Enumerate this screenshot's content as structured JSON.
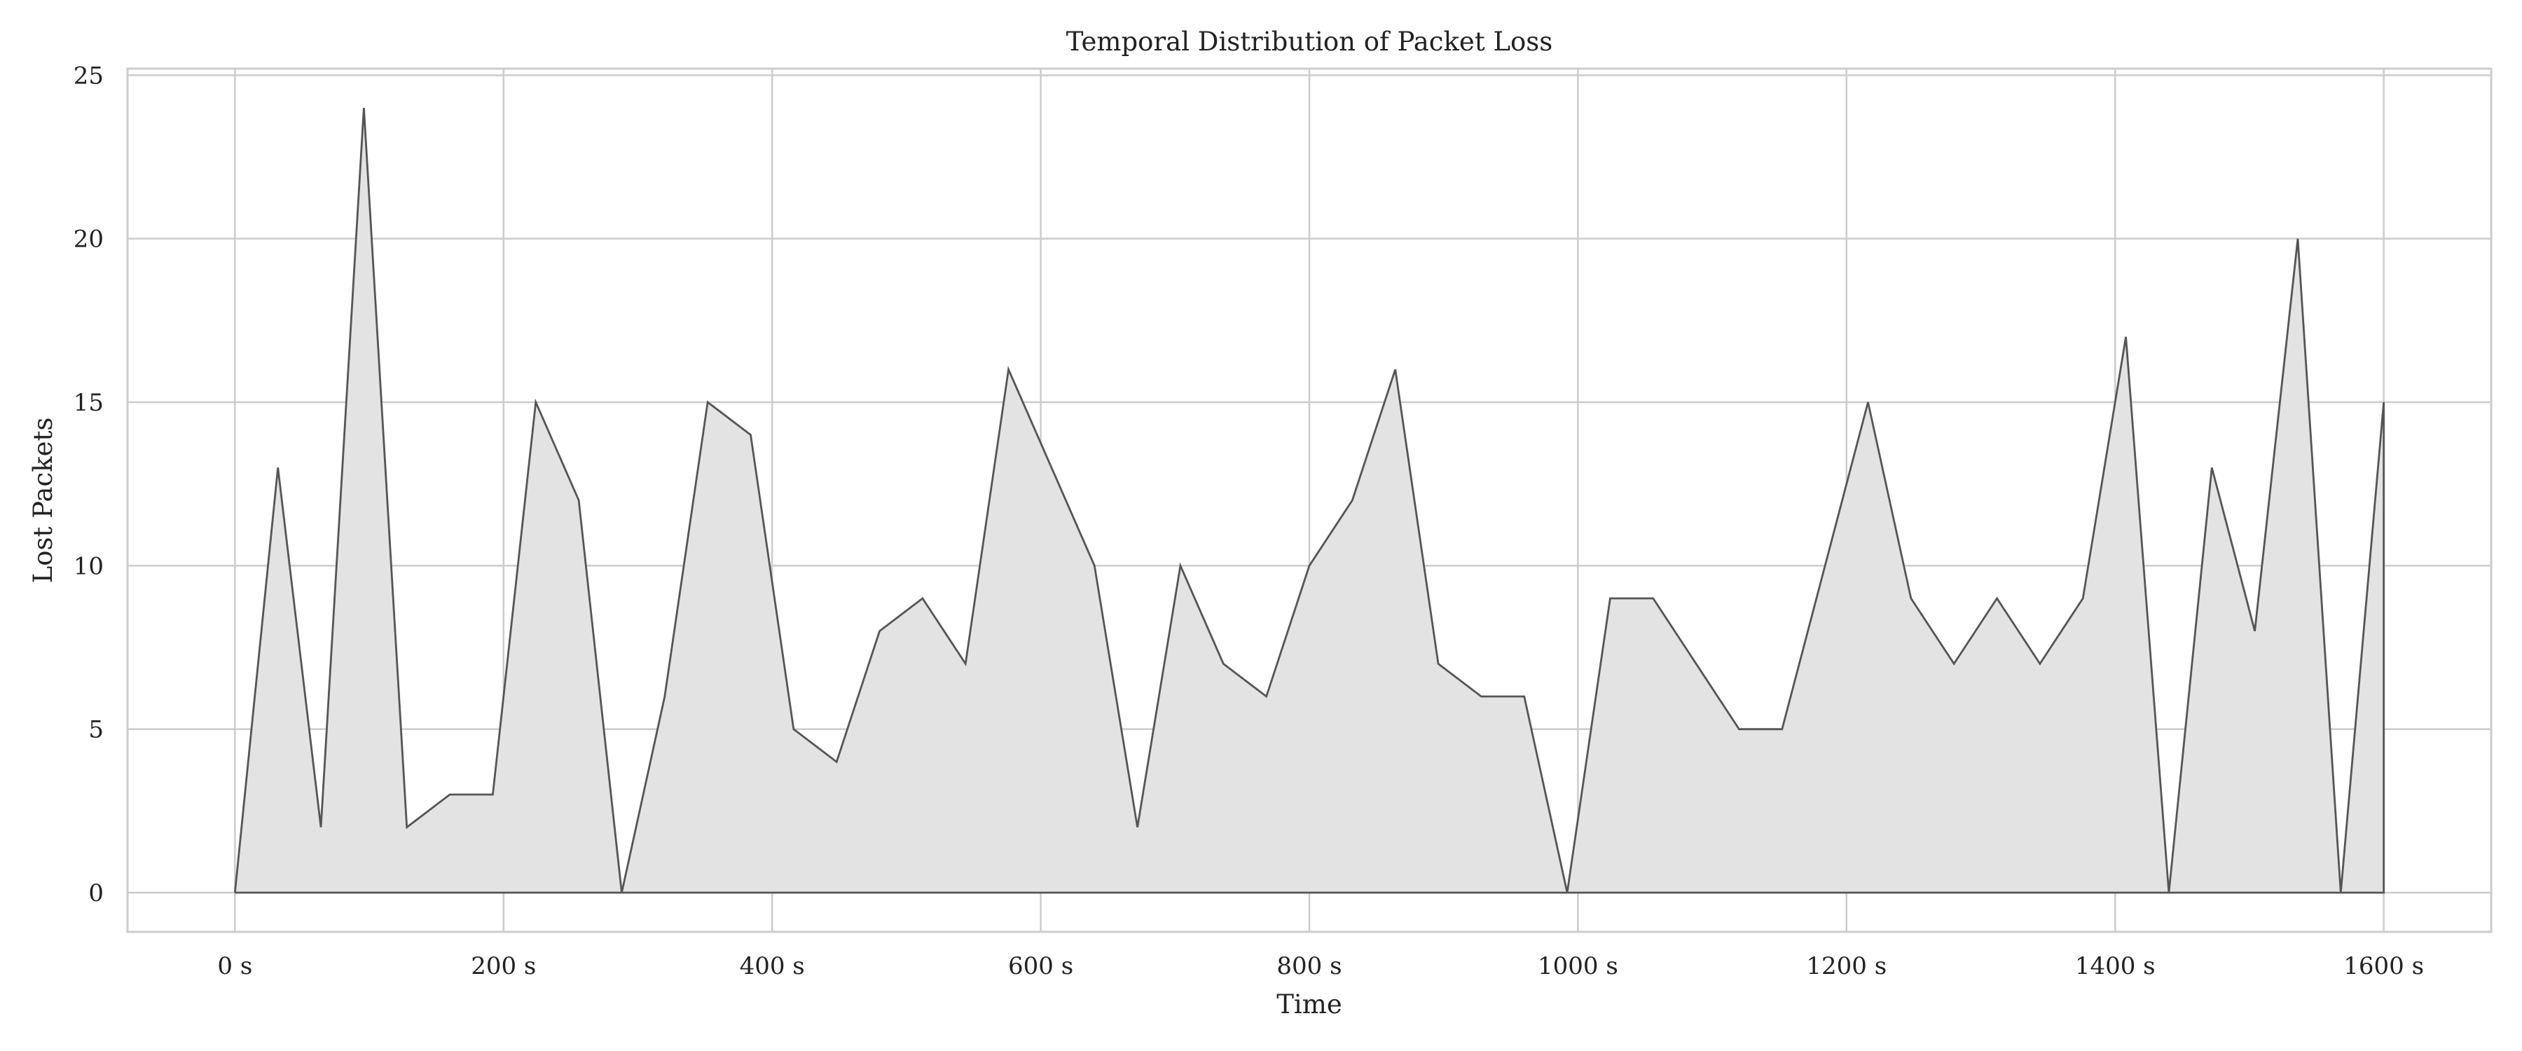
{
  "chart_data": {
    "type": "area",
    "title": "Temporal Distribution of Packet Loss",
    "xlabel": "Time",
    "ylabel": "Lost Packets",
    "xlim": [
      -80,
      1680
    ],
    "ylim": [
      -1.2,
      25.2
    ],
    "x_ticks": [
      0,
      200,
      400,
      600,
      800,
      1000,
      1200,
      1400,
      1600
    ],
    "x_tick_labels": [
      "0 s",
      "200 s",
      "400 s",
      "600 s",
      "800 s",
      "1000 s",
      "1200 s",
      "1400 s",
      "1600 s"
    ],
    "y_ticks": [
      0,
      5,
      10,
      15,
      20,
      25
    ],
    "y_tick_labels": [
      "0",
      "5",
      "10",
      "15",
      "20",
      "25"
    ],
    "grid": true,
    "line_color": "#555555",
    "fill_color": "#e3e3e3",
    "series": [
      {
        "x": [
          0,
          32,
          64,
          96,
          128,
          160,
          192,
          224,
          256,
          288,
          320,
          352,
          384,
          416,
          448,
          480,
          512,
          544,
          576,
          608,
          640,
          672,
          704,
          736,
          768,
          800,
          832,
          864,
          896,
          928,
          960,
          992,
          1024,
          1056,
          1088,
          1120,
          1152,
          1184,
          1216,
          1248,
          1280,
          1312,
          1344,
          1376,
          1408,
          1440,
          1472,
          1504,
          1536,
          1568,
          1600
        ],
        "values": [
          0,
          13,
          2,
          24,
          2,
          3,
          3,
          15,
          12,
          0,
          6,
          15,
          14,
          5,
          4,
          8,
          9,
          7,
          16,
          13,
          10,
          2,
          10,
          7,
          6,
          10,
          12,
          16,
          7,
          6,
          6,
          0,
          9,
          9,
          7,
          5,
          5,
          10,
          15,
          9,
          7,
          9,
          7,
          9,
          17,
          0,
          13,
          8,
          20,
          0,
          15
        ]
      }
    ]
  }
}
